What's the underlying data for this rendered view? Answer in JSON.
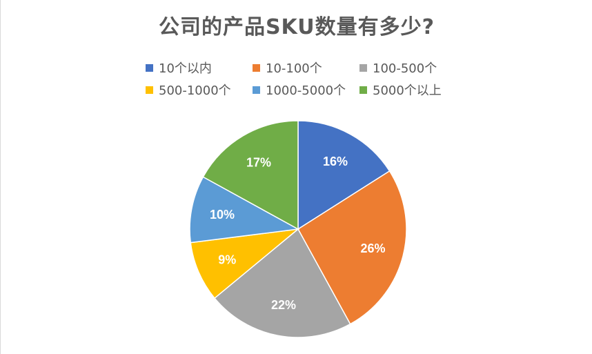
{
  "chart_data": {
    "type": "pie",
    "title": "公司的产品SKU数量有多少?",
    "categories": [
      "10个以内",
      "10-100个",
      "100-500个",
      "500-1000个",
      "1000-5000个",
      "5000个以上"
    ],
    "values": [
      16,
      26,
      22,
      9,
      10,
      17
    ],
    "value_labels": [
      "16%",
      "26%",
      "22%",
      "9%",
      "10%",
      "17%"
    ],
    "colors": [
      "#4472C4",
      "#ED7D31",
      "#A5A5A5",
      "#FFC000",
      "#5B9BD5",
      "#70AD47"
    ],
    "start_angle_deg": 0,
    "direction": "clockwise",
    "legend_position": "top"
  }
}
